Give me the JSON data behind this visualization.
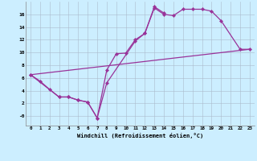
{
  "xlabel": "Windchill (Refroidissement éolien,°C)",
  "background_color": "#cceeff",
  "line_color": "#993399",
  "xlim": [
    -0.5,
    23.5
  ],
  "ylim": [
    -1.5,
    18.0
  ],
  "xticks": [
    0,
    1,
    2,
    3,
    4,
    5,
    6,
    7,
    8,
    9,
    10,
    11,
    12,
    13,
    14,
    15,
    16,
    17,
    18,
    19,
    20,
    21,
    22,
    23
  ],
  "yticks": [
    0,
    2,
    4,
    6,
    8,
    10,
    12,
    14,
    16
  ],
  "ytick_labels": [
    "-0",
    "2",
    "4",
    "6",
    "8",
    "10",
    "12",
    "14",
    "16"
  ],
  "series": [
    {
      "x": [
        0,
        1,
        2,
        3,
        4,
        5,
        6,
        7,
        8,
        9,
        10,
        11,
        12,
        13,
        14,
        15,
        16,
        17,
        18,
        19,
        20,
        22,
        23
      ],
      "y": [
        6.5,
        5.5,
        4.2,
        3.0,
        3.0,
        2.5,
        2.2,
        -0.3,
        7.2,
        9.8,
        9.9,
        12.0,
        13.0,
        17.0,
        16.0,
        15.8,
        16.8,
        16.8,
        16.8,
        16.5,
        15.0,
        10.5,
        10.5
      ],
      "has_markers": true
    },
    {
      "x": [
        0,
        3,
        4,
        5,
        6,
        7,
        8,
        11,
        12,
        13,
        14
      ],
      "y": [
        6.5,
        3.0,
        3.0,
        2.5,
        2.2,
        -0.3,
        5.2,
        11.8,
        13.0,
        17.2,
        16.2
      ],
      "has_markers": true
    },
    {
      "x": [
        0,
        23
      ],
      "y": [
        6.5,
        10.5
      ],
      "has_markers": false
    }
  ]
}
